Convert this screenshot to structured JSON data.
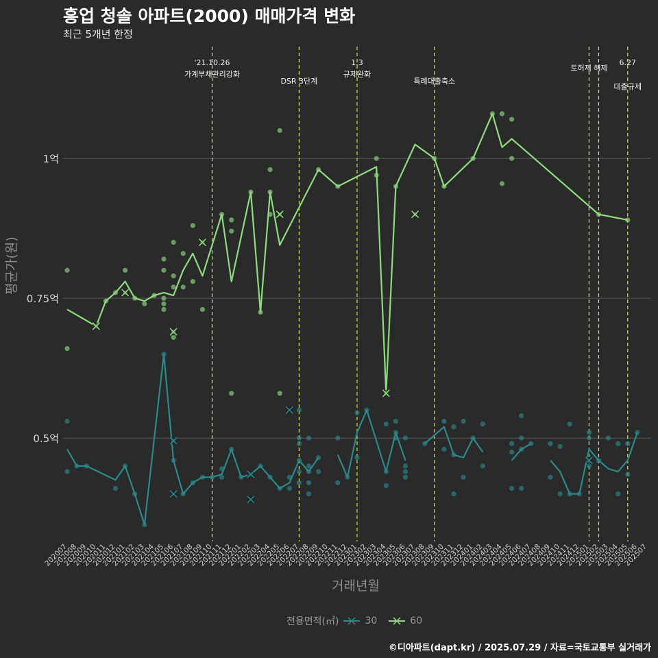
{
  "header": {
    "title": "흥업 청솔 아파트(2000) 매매가격 변화",
    "subtitle": "최근 5개년 한정"
  },
  "caption": "©디아파트(dapt.kr) / 2025.07.29 / 자료=국토교통부 실거래가",
  "legend": {
    "title": "전용면적(㎡)",
    "items": [
      {
        "label": "30",
        "color": "#2a8a8c"
      },
      {
        "label": "60",
        "color": "#8edc7e"
      }
    ]
  },
  "chart_data": {
    "type": "line",
    "title": "흥업 청솔 아파트(2000) 매매가격 변화",
    "subtitle": "최근 5개년 한정",
    "xlabel": "거래년월",
    "ylabel": "평균가(원)",
    "categories": [
      "202007",
      "202008",
      "202009",
      "202010",
      "202011",
      "202012",
      "202101",
      "202102",
      "202103",
      "202104",
      "202105",
      "202106",
      "202107",
      "202108",
      "202109",
      "202110",
      "202111",
      "202112",
      "202201",
      "202202",
      "202203",
      "202204",
      "202205",
      "202206",
      "202207",
      "202208",
      "202209",
      "202210",
      "202211",
      "202212",
      "202301",
      "202302",
      "202303",
      "202304",
      "202305",
      "202306",
      "202307",
      "202308",
      "202309",
      "202310",
      "202311",
      "202312",
      "202401",
      "202402",
      "202403",
      "202404",
      "202405",
      "202406",
      "202407",
      "202408",
      "202409",
      "202410",
      "202411",
      "202412",
      "202501",
      "202502",
      "202503",
      "202504",
      "202505",
      "202506",
      "202507"
    ],
    "yticks": [
      {
        "value": 0.5,
        "label": "0.5억"
      },
      {
        "value": 0.75,
        "label": "0.75억"
      },
      {
        "value": 1.0,
        "label": "1억"
      }
    ],
    "ylim": [
      0.315,
      1.2
    ],
    "grid": true,
    "legend_position": "bottom",
    "series": [
      {
        "name": "30",
        "color": "#2a8a8c",
        "line": [
          [
            0,
            0.48
          ],
          [
            1,
            0.45
          ],
          [
            2,
            0.45
          ],
          [
            5,
            0.425
          ],
          [
            6,
            0.45
          ],
          [
            7,
            0.4
          ],
          [
            8,
            0.345
          ],
          [
            10,
            0.65
          ],
          [
            11,
            0.46
          ],
          [
            12,
            0.4
          ],
          [
            13,
            0.42
          ],
          [
            14,
            0.43
          ],
          [
            15,
            0.43
          ],
          [
            16,
            0.435
          ],
          [
            17,
            0.48
          ],
          [
            18,
            0.43
          ],
          [
            19,
            0.435
          ],
          [
            20,
            0.45
          ],
          [
            21,
            0.43
          ],
          [
            22,
            0.41
          ],
          [
            23,
            0.42
          ],
          [
            24,
            0.46
          ],
          [
            25,
            0.44
          ],
          [
            26,
            0.465
          ],
          null,
          [
            28,
            0.47
          ],
          [
            29,
            0.43
          ],
          [
            30,
            0.51
          ],
          [
            31,
            0.55
          ],
          [
            33,
            0.44
          ],
          [
            34,
            0.51
          ],
          [
            35,
            0.46
          ],
          null,
          [
            37,
            0.49
          ],
          [
            39,
            0.52
          ],
          [
            40,
            0.47
          ],
          [
            41,
            0.465
          ],
          [
            42,
            0.5
          ],
          [
            43,
            0.475
          ],
          null,
          [
            46,
            0.46
          ],
          [
            47,
            0.48
          ],
          [
            48,
            0.49
          ],
          null,
          [
            50,
            0.46
          ],
          [
            51,
            0.44
          ],
          [
            52,
            0.4
          ],
          [
            53,
            0.4
          ],
          [
            54,
            0.48
          ],
          [
            55,
            0.46
          ],
          [
            56,
            0.445
          ],
          [
            57,
            0.44
          ],
          [
            58,
            0.46
          ],
          [
            59,
            0.51
          ]
        ],
        "points": [
          [
            0,
            0.53
          ],
          [
            0,
            0.44
          ],
          [
            1,
            0.45
          ],
          [
            2,
            0.45
          ],
          [
            5,
            0.41
          ],
          [
            6,
            0.45
          ],
          [
            7,
            0.4
          ],
          [
            8,
            0.345
          ],
          [
            10,
            0.65
          ],
          [
            11,
            0.495
          ],
          [
            11,
            0.46
          ],
          [
            12,
            0.4
          ],
          [
            13,
            0.42
          ],
          [
            14,
            0.43
          ],
          [
            15,
            0.43
          ],
          [
            16,
            0.445
          ],
          [
            16,
            0.43
          ],
          [
            17,
            0.48
          ],
          [
            18,
            0.43
          ],
          [
            19,
            0.435
          ],
          [
            20,
            0.45
          ],
          [
            21,
            0.43
          ],
          [
            22,
            0.41
          ],
          [
            23,
            0.43
          ],
          [
            23,
            0.41
          ],
          [
            24,
            0.55
          ],
          [
            24,
            0.5
          ],
          [
            24,
            0.49
          ],
          [
            24,
            0.46
          ],
          [
            24,
            0.44
          ],
          [
            24,
            0.42
          ],
          [
            25,
            0.5
          ],
          [
            25,
            0.45
          ],
          [
            25,
            0.44
          ],
          [
            25,
            0.42
          ],
          [
            25,
            0.4
          ],
          [
            26,
            0.465
          ],
          [
            26,
            0.44
          ],
          [
            28,
            0.5
          ],
          [
            28,
            0.42
          ],
          [
            29,
            0.43
          ],
          [
            30,
            0.545
          ],
          [
            30,
            0.465
          ],
          [
            31,
            0.55
          ],
          [
            33,
            0.525
          ],
          [
            33,
            0.44
          ],
          [
            33,
            0.415
          ],
          [
            34,
            0.53
          ],
          [
            34,
            0.51
          ],
          [
            34,
            0.5
          ],
          [
            35,
            0.5
          ],
          [
            35,
            0.45
          ],
          [
            35,
            0.44
          ],
          [
            35,
            0.43
          ],
          [
            37,
            0.49
          ],
          [
            39,
            0.53
          ],
          [
            39,
            0.48
          ],
          [
            40,
            0.52
          ],
          [
            40,
            0.47
          ],
          [
            40,
            0.4
          ],
          [
            41,
            0.53
          ],
          [
            41,
            0.43
          ],
          [
            42,
            0.5
          ],
          [
            43,
            0.525
          ],
          [
            43,
            0.45
          ],
          [
            46,
            0.49
          ],
          [
            46,
            0.475
          ],
          [
            46,
            0.41
          ],
          [
            47,
            0.54
          ],
          [
            47,
            0.5
          ],
          [
            47,
            0.48
          ],
          [
            47,
            0.41
          ],
          [
            48,
            0.49
          ],
          [
            50,
            0.49
          ],
          [
            50,
            0.43
          ],
          [
            51,
            0.485
          ],
          [
            51,
            0.4
          ],
          [
            52,
            0.525
          ],
          [
            52,
            0.4
          ],
          [
            53,
            0.4
          ],
          [
            54,
            0.51
          ],
          [
            54,
            0.5
          ],
          [
            54,
            0.45
          ],
          [
            55,
            0.46
          ],
          [
            56,
            0.5
          ],
          [
            57,
            0.49
          ],
          [
            57,
            0.4
          ],
          [
            58,
            0.49
          ],
          [
            58,
            0.435
          ],
          [
            59,
            0.51
          ]
        ],
        "cancelled": [
          [
            11,
            0.495
          ],
          [
            11,
            0.4
          ],
          [
            19,
            0.435
          ],
          [
            19,
            0.39
          ],
          [
            23,
            0.55
          ],
          [
            54,
            0.46
          ]
        ]
      },
      {
        "name": "60",
        "color": "#8edc7e",
        "line": [
          [
            0,
            0.73
          ],
          [
            3,
            0.7
          ],
          [
            4,
            0.745
          ],
          [
            5,
            0.76
          ],
          [
            6,
            0.78
          ],
          [
            7,
            0.75
          ],
          [
            8,
            0.745
          ],
          [
            9,
            0.755
          ],
          [
            10,
            0.76
          ],
          [
            11,
            0.755
          ],
          [
            12,
            0.8
          ],
          [
            13,
            0.83
          ],
          [
            14,
            0.79
          ],
          [
            16,
            0.9
          ],
          [
            17,
            0.78
          ],
          [
            19,
            0.94
          ],
          [
            20,
            0.725
          ],
          [
            21,
            0.94
          ],
          [
            22,
            0.845
          ],
          [
            26,
            0.98
          ],
          [
            28,
            0.95
          ],
          [
            32,
            0.985
          ],
          [
            33,
            0.58
          ],
          [
            34,
            0.95
          ],
          [
            36,
            1.025
          ],
          [
            38,
            1.0
          ],
          [
            39,
            0.95
          ],
          [
            42,
            1.0
          ],
          [
            44,
            1.08
          ],
          [
            45,
            1.02
          ],
          [
            46,
            1.035
          ],
          [
            55,
            0.9
          ],
          [
            58,
            0.89
          ]
        ],
        "points": [
          [
            0,
            0.8
          ],
          [
            0,
            0.66
          ],
          [
            3,
            0.7
          ],
          [
            4,
            0.745
          ],
          [
            5,
            0.76
          ],
          [
            6,
            0.8
          ],
          [
            6,
            0.76
          ],
          [
            7,
            0.75
          ],
          [
            8,
            0.74
          ],
          [
            9,
            0.755
          ],
          [
            10,
            0.82
          ],
          [
            10,
            0.8
          ],
          [
            10,
            0.75
          ],
          [
            10,
            0.74
          ],
          [
            10,
            0.73
          ],
          [
            11,
            0.85
          ],
          [
            11,
            0.79
          ],
          [
            11,
            0.77
          ],
          [
            11,
            0.69
          ],
          [
            11,
            0.68
          ],
          [
            12,
            0.83
          ],
          [
            12,
            0.77
          ],
          [
            13,
            0.88
          ],
          [
            13,
            0.78
          ],
          [
            14,
            0.85
          ],
          [
            14,
            0.73
          ],
          [
            16,
            0.9
          ],
          [
            17,
            0.89
          ],
          [
            17,
            0.87
          ],
          [
            17,
            0.58
          ],
          [
            19,
            0.94
          ],
          [
            20,
            0.725
          ],
          [
            21,
            0.98
          ],
          [
            21,
            0.94
          ],
          [
            21,
            0.9
          ],
          [
            22,
            1.05
          ],
          [
            22,
            0.9
          ],
          [
            22,
            0.58
          ],
          [
            26,
            0.98
          ],
          [
            28,
            0.95
          ],
          [
            32,
            1.0
          ],
          [
            32,
            0.97
          ],
          [
            33,
            0.58
          ],
          [
            34,
            0.95
          ],
          [
            36,
            0.9
          ],
          [
            38,
            1.0
          ],
          [
            39,
            0.95
          ],
          [
            42,
            1.0
          ],
          [
            44,
            1.08
          ],
          [
            45,
            1.08
          ],
          [
            45,
            0.955
          ],
          [
            46,
            1.07
          ],
          [
            46,
            1.0
          ],
          [
            55,
            0.9
          ],
          [
            58,
            0.89
          ]
        ],
        "cancelled": [
          [
            3,
            0.7
          ],
          [
            6,
            0.76
          ],
          [
            11,
            0.69
          ],
          [
            14,
            0.85
          ],
          [
            22,
            0.9
          ],
          [
            33,
            0.58
          ],
          [
            36,
            0.9
          ]
        ]
      }
    ],
    "events": [
      {
        "index": 15,
        "line1": "'21.10.26",
        "line2": "가계부채관리강화"
      },
      {
        "index": 24,
        "line1": "",
        "line2": "DSR 3단계"
      },
      {
        "index": 30,
        "line1": "1.3",
        "line2": "규제완화"
      },
      {
        "index": 38,
        "line1": "",
        "line2": "특례대출축소"
      },
      {
        "index": 54,
        "line1": "토허제 해제",
        "line2": ""
      },
      {
        "index": 55,
        "line1": "",
        "line2": ""
      },
      {
        "index": 58,
        "line1": "6.27",
        "line2": "대출규제"
      }
    ]
  }
}
